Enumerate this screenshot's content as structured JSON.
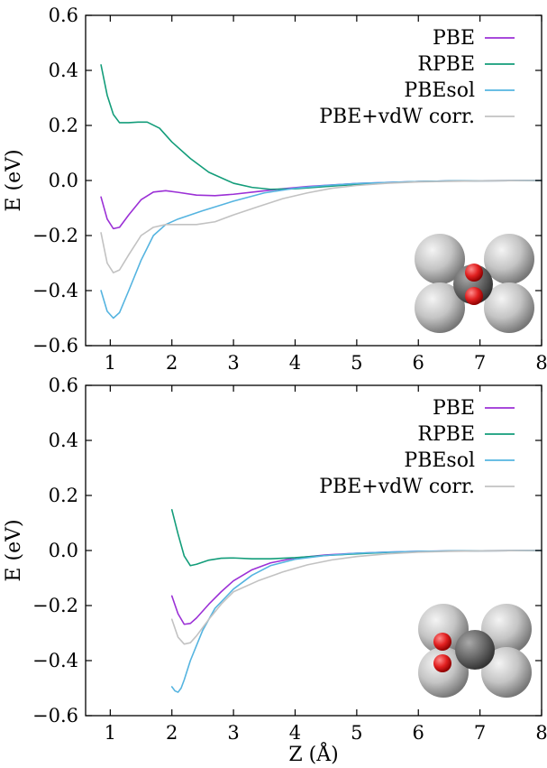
{
  "chart_data": [
    {
      "type": "line",
      "title": "",
      "xlabel": "",
      "ylabel": "E (eV)",
      "xlim": [
        0.6,
        8
      ],
      "ylim": [
        -0.6,
        0.6
      ],
      "xticks": [
        "1",
        "2",
        "3",
        "4",
        "5",
        "6",
        "7",
        "8"
      ],
      "yticks": [
        "0.6",
        "0.4",
        "0.2",
        "0.0",
        "−0.2",
        "−0.4",
        "−0.6"
      ],
      "grid": false,
      "legend_position": "top-right",
      "inset": "molecule-on-surface-top-view",
      "series": [
        {
          "name": "PBE",
          "color": "#9b30d6",
          "x": [
            0.85,
            0.95,
            1.05,
            1.15,
            1.3,
            1.5,
            1.7,
            1.9,
            2.1,
            2.4,
            2.7,
            3.0,
            3.4,
            3.8,
            4.2,
            4.6,
            5.0,
            5.5,
            6.0,
            6.5,
            7.0,
            7.5,
            8.0
          ],
          "y": [
            -0.06,
            -0.14,
            -0.175,
            -0.17,
            -0.125,
            -0.07,
            -0.042,
            -0.037,
            -0.043,
            -0.053,
            -0.055,
            -0.05,
            -0.04,
            -0.03,
            -0.022,
            -0.016,
            -0.011,
            -0.007,
            -0.004,
            -0.002,
            -0.001,
            -0.0005,
            0.0
          ]
        },
        {
          "name": "RPBE",
          "color": "#139d7a",
          "x": [
            0.85,
            0.95,
            1.05,
            1.15,
            1.3,
            1.45,
            1.6,
            1.8,
            2.0,
            2.3,
            2.6,
            3.0,
            3.3,
            3.6,
            4.0,
            4.5,
            5.0,
            5.5,
            6.0,
            6.5,
            7.0,
            7.5,
            8.0
          ],
          "y": [
            0.42,
            0.31,
            0.24,
            0.21,
            0.21,
            0.212,
            0.212,
            0.19,
            0.14,
            0.08,
            0.03,
            -0.01,
            -0.025,
            -0.032,
            -0.03,
            -0.022,
            -0.014,
            -0.008,
            -0.004,
            -0.002,
            -0.001,
            -0.0005,
            0.0
          ]
        },
        {
          "name": "PBEsol",
          "color": "#55b4e0",
          "x": [
            0.85,
            0.95,
            1.05,
            1.15,
            1.3,
            1.5,
            1.7,
            1.9,
            2.1,
            2.5,
            3.0,
            3.5,
            4.0,
            4.5,
            5.0,
            5.5,
            6.0,
            6.5,
            7.0,
            7.5,
            8.0
          ],
          "y": [
            -0.4,
            -0.475,
            -0.5,
            -0.48,
            -0.4,
            -0.29,
            -0.2,
            -0.16,
            -0.14,
            -0.11,
            -0.075,
            -0.045,
            -0.028,
            -0.018,
            -0.011,
            -0.007,
            -0.004,
            -0.002,
            -0.001,
            -0.0005,
            0.0
          ]
        },
        {
          "name": "PBE+vdW corr.",
          "color": "#c2c2c2",
          "x": [
            0.85,
            0.95,
            1.05,
            1.15,
            1.3,
            1.5,
            1.7,
            1.9,
            2.1,
            2.4,
            2.7,
            3.0,
            3.4,
            3.8,
            4.2,
            4.6,
            5.0,
            5.5,
            6.0,
            6.5,
            7.0,
            7.5,
            8.0
          ],
          "y": [
            -0.19,
            -0.3,
            -0.335,
            -0.325,
            -0.27,
            -0.2,
            -0.17,
            -0.16,
            -0.16,
            -0.16,
            -0.15,
            -0.125,
            -0.095,
            -0.066,
            -0.045,
            -0.028,
            -0.018,
            -0.01,
            -0.005,
            -0.003,
            -0.0015,
            -0.0005,
            0.0
          ]
        }
      ]
    },
    {
      "type": "line",
      "title": "",
      "xlabel": "Z (Å)",
      "ylabel": "E (eV)",
      "xlim": [
        0.6,
        8
      ],
      "ylim": [
        -0.6,
        0.6
      ],
      "xticks": [
        "1",
        "2",
        "3",
        "4",
        "5",
        "6",
        "7",
        "8"
      ],
      "yticks": [
        "0.6",
        "0.4",
        "0.2",
        "0.0",
        "−0.2",
        "−0.4",
        "−0.6"
      ],
      "grid": false,
      "legend_position": "top-right",
      "inset": "molecule-on-surface-side-view",
      "series": [
        {
          "name": "PBE",
          "color": "#9b30d6",
          "x": [
            2.0,
            2.1,
            2.2,
            2.3,
            2.4,
            2.6,
            2.8,
            3.0,
            3.3,
            3.6,
            4.0,
            4.5,
            5.0,
            5.5,
            6.0,
            6.5,
            7.0,
            7.5,
            8.0
          ],
          "y": [
            -0.165,
            -0.23,
            -0.268,
            -0.265,
            -0.245,
            -0.195,
            -0.15,
            -0.11,
            -0.07,
            -0.045,
            -0.027,
            -0.016,
            -0.01,
            -0.006,
            -0.003,
            -0.002,
            -0.001,
            -0.0005,
            0.0
          ]
        },
        {
          "name": "RPBE",
          "color": "#139d7a",
          "x": [
            2.0,
            2.1,
            2.2,
            2.3,
            2.4,
            2.6,
            2.8,
            3.0,
            3.3,
            3.6,
            4.0,
            4.5,
            5.0,
            5.5,
            6.0,
            6.5,
            7.0,
            7.5,
            8.0
          ],
          "y": [
            0.148,
            0.06,
            -0.02,
            -0.055,
            -0.05,
            -0.035,
            -0.028,
            -0.027,
            -0.03,
            -0.03,
            -0.026,
            -0.018,
            -0.012,
            -0.007,
            -0.004,
            -0.002,
            -0.001,
            -0.0005,
            0.0
          ]
        },
        {
          "name": "PBEsol",
          "color": "#55b4e0",
          "x": [
            2.0,
            2.05,
            2.1,
            2.15,
            2.2,
            2.3,
            2.5,
            2.7,
            3.0,
            3.3,
            3.6,
            4.0,
            4.5,
            5.0,
            5.5,
            6.0,
            6.5,
            7.0,
            7.5,
            8.0
          ],
          "y": [
            -0.495,
            -0.51,
            -0.515,
            -0.5,
            -0.47,
            -0.4,
            -0.29,
            -0.21,
            -0.14,
            -0.09,
            -0.055,
            -0.032,
            -0.018,
            -0.01,
            -0.006,
            -0.003,
            -0.002,
            -0.001,
            -0.0005,
            0.0
          ]
        },
        {
          "name": "PBE+vdW corr.",
          "color": "#c2c2c2",
          "x": [
            2.0,
            2.1,
            2.2,
            2.3,
            2.4,
            2.6,
            2.8,
            3.0,
            3.4,
            3.8,
            4.2,
            4.6,
            5.0,
            5.5,
            6.0,
            6.5,
            7.0,
            7.5,
            8.0
          ],
          "y": [
            -0.25,
            -0.315,
            -0.34,
            -0.335,
            -0.31,
            -0.25,
            -0.195,
            -0.15,
            -0.11,
            -0.078,
            -0.052,
            -0.034,
            -0.022,
            -0.012,
            -0.006,
            -0.003,
            -0.0015,
            -0.0005,
            0.0
          ]
        }
      ]
    }
  ]
}
